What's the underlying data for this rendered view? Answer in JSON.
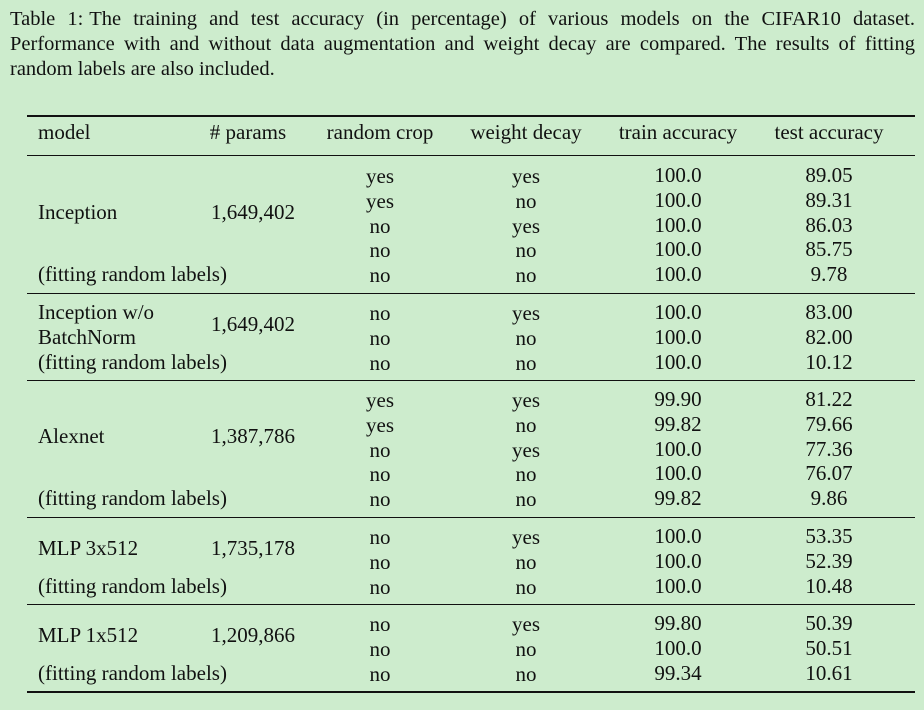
{
  "caption": {
    "label": "Table 1:",
    "text": "The training and test accuracy (in percentage) of various models on the CIFAR10 dataset. Performance with and without data augmentation and weight decay are compared. The results of fitting random labels are also included."
  },
  "table": {
    "headers": [
      "model",
      "# params",
      "random crop",
      "weight decay",
      "train accuracy",
      "test accuracy"
    ],
    "groups": [
      {
        "model": "Inception",
        "params": "1,649,402",
        "rows": [
          {
            "crop": "yes",
            "decay": "yes",
            "train": "100.0",
            "test": "89.05"
          },
          {
            "crop": "yes",
            "decay": "no",
            "train": "100.0",
            "test": "89.31"
          },
          {
            "crop": "no",
            "decay": "yes",
            "train": "100.0",
            "test": "86.03"
          },
          {
            "crop": "no",
            "decay": "no",
            "train": "100.0",
            "test": "85.75"
          },
          {
            "label": "(fitting random labels)",
            "crop": "no",
            "decay": "no",
            "train": "100.0",
            "test": "9.78"
          }
        ]
      },
      {
        "model": "Inception w/o",
        "model2": "BatchNorm",
        "params": "1,649,402",
        "rows": [
          {
            "crop": "no",
            "decay": "yes",
            "train": "100.0",
            "test": "83.00"
          },
          {
            "crop": "no",
            "decay": "no",
            "train": "100.0",
            "test": "82.00"
          },
          {
            "label": "(fitting random labels)",
            "crop": "no",
            "decay": "no",
            "train": "100.0",
            "test": "10.12"
          }
        ]
      },
      {
        "model": "Alexnet",
        "params": "1,387,786",
        "rows": [
          {
            "crop": "yes",
            "decay": "yes",
            "train": "99.90",
            "test": "81.22"
          },
          {
            "crop": "yes",
            "decay": "no",
            "train": "99.82",
            "test": "79.66"
          },
          {
            "crop": "no",
            "decay": "yes",
            "train": "100.0",
            "test": "77.36"
          },
          {
            "crop": "no",
            "decay": "no",
            "train": "100.0",
            "test": "76.07"
          },
          {
            "label": "(fitting random labels)",
            "crop": "no",
            "decay": "no",
            "train": "99.82",
            "test": "9.86"
          }
        ]
      },
      {
        "model": "MLP 3x512",
        "params": "1,735,178",
        "rows": [
          {
            "crop": "no",
            "decay": "yes",
            "train": "100.0",
            "test": "53.35"
          },
          {
            "crop": "no",
            "decay": "no",
            "train": "100.0",
            "test": "52.39"
          },
          {
            "label": "(fitting random labels)",
            "crop": "no",
            "decay": "no",
            "train": "100.0",
            "test": "10.48"
          }
        ]
      },
      {
        "model": "MLP 1x512",
        "params": "1,209,866",
        "rows": [
          {
            "crop": "no",
            "decay": "yes",
            "train": "99.80",
            "test": "50.39"
          },
          {
            "crop": "no",
            "decay": "no",
            "train": "100.0",
            "test": "50.51"
          },
          {
            "label": "(fitting random labels)",
            "crop": "no",
            "decay": "no",
            "train": "99.34",
            "test": "10.61"
          }
        ]
      }
    ]
  }
}
